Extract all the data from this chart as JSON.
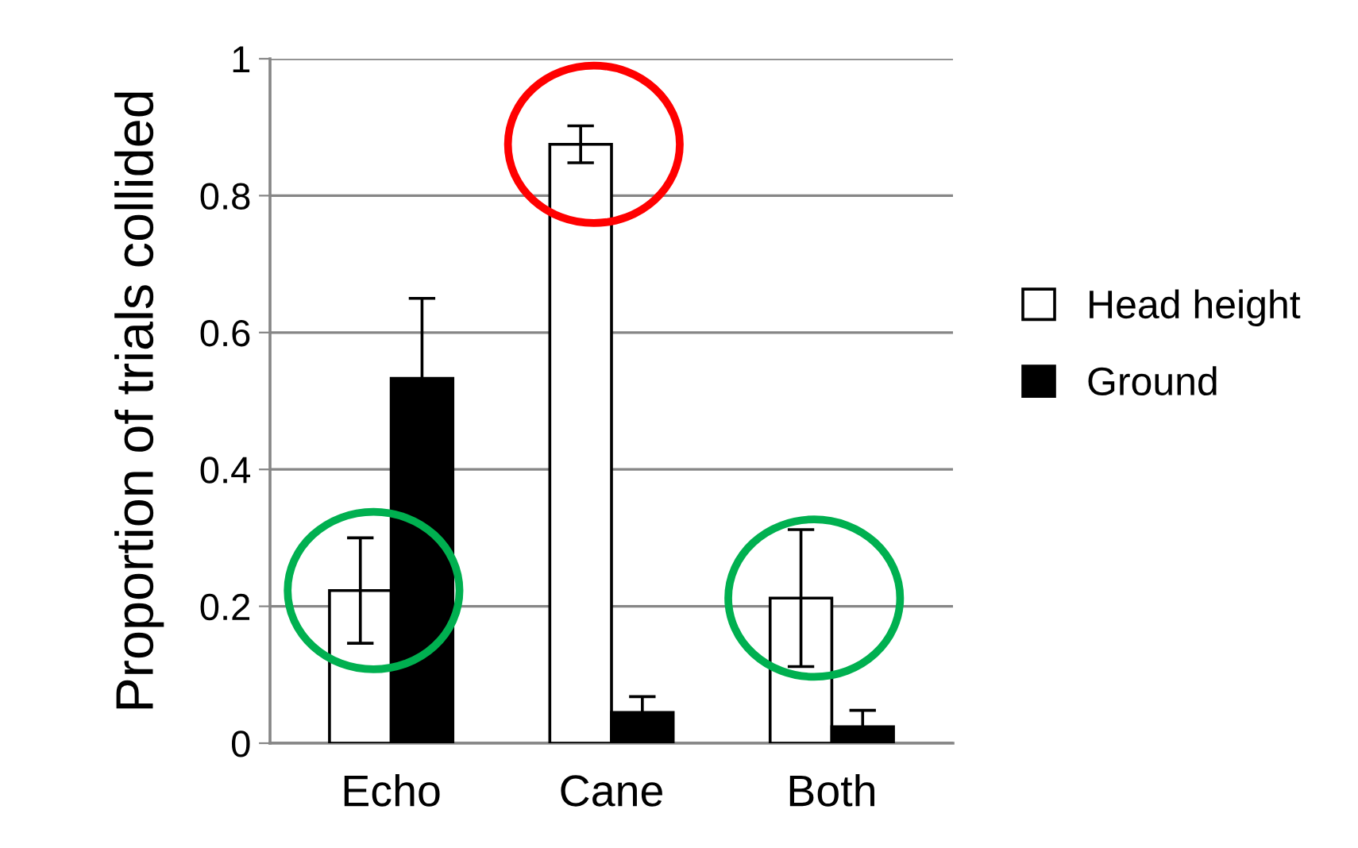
{
  "chart_data": {
    "type": "bar",
    "ylabel": "Proportion of trials collided",
    "categories": [
      "Echo",
      "Cane",
      "Both"
    ],
    "series": [
      {
        "name": "Head height",
        "color": "#ffffff",
        "values": [
          0.223,
          0.875,
          0.212
        ],
        "errors": [
          0.077,
          0.027,
          0.1
        ]
      },
      {
        "name": "Ground",
        "color": "#000000",
        "values": [
          0.533,
          0.045,
          0.024
        ],
        "errors": [
          0.117,
          0.023,
          0.024
        ]
      }
    ],
    "ylim": [
      0,
      1
    ],
    "yticks": [
      0,
      0.2,
      0.4,
      0.6,
      0.8,
      {
        "value": 1,
        "label": "1"
      }
    ],
    "grid": "y",
    "legend": "right"
  }
}
